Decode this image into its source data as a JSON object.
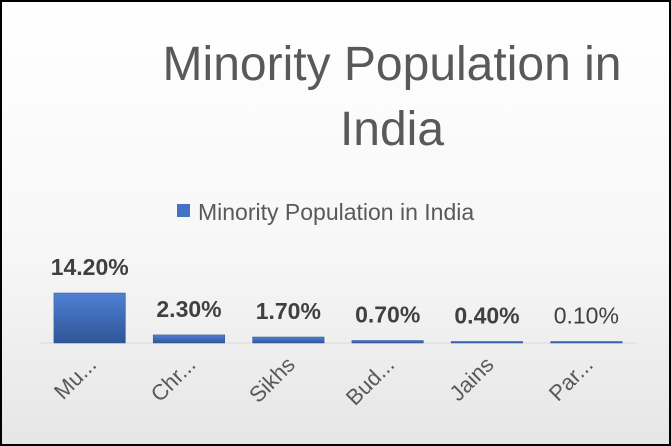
{
  "chart_data": {
    "type": "bar",
    "title_lines": [
      "Minority Population in",
      "India"
    ],
    "legend": {
      "label": "Minority Population in India",
      "placement": "top",
      "color": "#4472C4"
    },
    "categories": [
      "Mu...",
      "Chr...",
      "Sikhs",
      "Bud...",
      "Jains",
      "Par..."
    ],
    "series": [
      {
        "name": "Minority Population in India",
        "values": [
          14.2,
          2.3,
          1.7,
          0.7,
          0.4,
          0.1
        ],
        "labels": [
          "14.20%",
          "2.30%",
          "1.70%",
          "0.70%",
          "0.40%",
          "0.10%"
        ],
        "label_bold": [
          true,
          true,
          true,
          true,
          true,
          false
        ],
        "color": "#4472C4"
      }
    ],
    "ylim": [
      0,
      14.2
    ],
    "grid": false,
    "tick_rotation": -45
  }
}
